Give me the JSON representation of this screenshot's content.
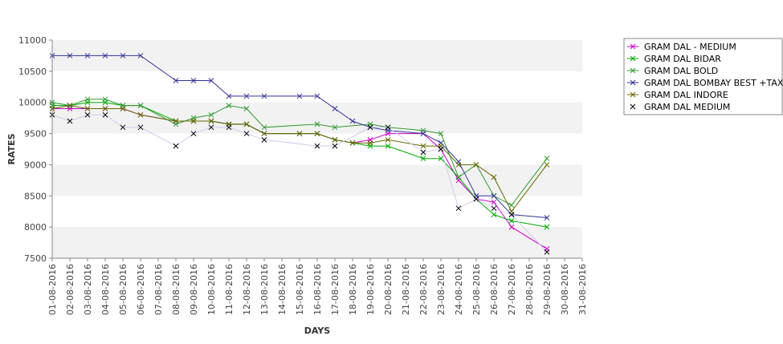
{
  "chart_data": {
    "type": "line",
    "xlabel": "DAYS",
    "ylabel": "RATES",
    "ylim": [
      7500,
      11000
    ],
    "yticks": [
      "7500",
      "8000",
      "8500",
      "9000",
      "9500",
      "10000",
      "10500",
      "11000"
    ],
    "categories": [
      "01-08-2016",
      "02-08-2016",
      "03-08-2016",
      "04-08-2016",
      "05-08-2016",
      "06-08-2016",
      "07-08-2016",
      "08-08-2016",
      "09-08-2016",
      "10-08-2016",
      "11-08-2016",
      "12-08-2016",
      "13-08-2016",
      "14-08-2016",
      "15-08-2016",
      "16-08-2016",
      "17-08-2016",
      "18-08-2016",
      "19-08-2016",
      "20-08-2016",
      "21-08-2016",
      "22-08-2016",
      "23-08-2016",
      "24-08-2016",
      "25-08-2016",
      "26-08-2016",
      "27-08-2016",
      "28-08-2016",
      "29-08-2016",
      "30-08-2016",
      "31-08-2016"
    ],
    "grid": "alternating horizontal bands",
    "legend_position": "top-right",
    "series": [
      {
        "name": "GRAM DAL - MEDIUM",
        "color": "#cc00cc",
        "values": [
          9900,
          9900,
          9900,
          9900,
          9900,
          9800,
          null,
          9700,
          9700,
          9700,
          9650,
          9650,
          9500,
          null,
          9500,
          9500,
          9400,
          9350,
          9400,
          9500,
          null,
          9500,
          9250,
          8750,
          8450,
          8400,
          8000,
          null,
          7650,
          null,
          null
        ]
      },
      {
        "name": "GRAM DAL BIDAR",
        "color": "#00aa00",
        "values": [
          9950,
          9950,
          10000,
          10000,
          9950,
          9950,
          null,
          9700,
          9700,
          9700,
          9650,
          9650,
          9500,
          null,
          9500,
          9500,
          9400,
          9350,
          9300,
          9300,
          null,
          9100,
          9100,
          8800,
          8450,
          8200,
          8100,
          null,
          8000,
          null,
          null
        ]
      },
      {
        "name": "GRAM DAL BOLD",
        "color": "#339933",
        "values": [
          10000,
          9950,
          10050,
          10050,
          9950,
          9950,
          null,
          9650,
          9750,
          9800,
          9950,
          9900,
          9600,
          null,
          null,
          9650,
          9600,
          null,
          9650,
          9600,
          null,
          9550,
          9500,
          8800,
          9000,
          8500,
          8350,
          null,
          9100,
          null,
          null
        ]
      },
      {
        "name": "GRAM DAL BOMBAY BEST +TAX",
        "color": "#333399",
        "values": [
          10750,
          10750,
          10750,
          10750,
          10750,
          10750,
          null,
          10350,
          10350,
          10350,
          10100,
          10100,
          10100,
          null,
          10100,
          10100,
          9900,
          9700,
          9600,
          9550,
          null,
          9500,
          9350,
          9050,
          8500,
          8500,
          8200,
          null,
          8150,
          null,
          null
        ]
      },
      {
        "name": "GRAM DAL INDORE",
        "color": "#666600",
        "values": [
          9900,
          9950,
          9900,
          9900,
          9900,
          9800,
          null,
          9700,
          9700,
          9700,
          9650,
          9650,
          9500,
          null,
          9500,
          9500,
          9400,
          9350,
          9350,
          9400,
          null,
          9300,
          9300,
          9000,
          9000,
          8800,
          8250,
          null,
          9000,
          null,
          null
        ]
      },
      {
        "name": "GRAM DAL MEDIUM",
        "color": "#ccccee",
        "marker": "#000000",
        "values": [
          9800,
          9700,
          9800,
          9800,
          9600,
          9600,
          null,
          9300,
          9500,
          9600,
          9600,
          9500,
          9400,
          null,
          null,
          9300,
          9300,
          null,
          9600,
          9600,
          null,
          9200,
          9250,
          8300,
          8450,
          8300,
          8200,
          null,
          7600,
          null,
          null
        ]
      }
    ]
  }
}
